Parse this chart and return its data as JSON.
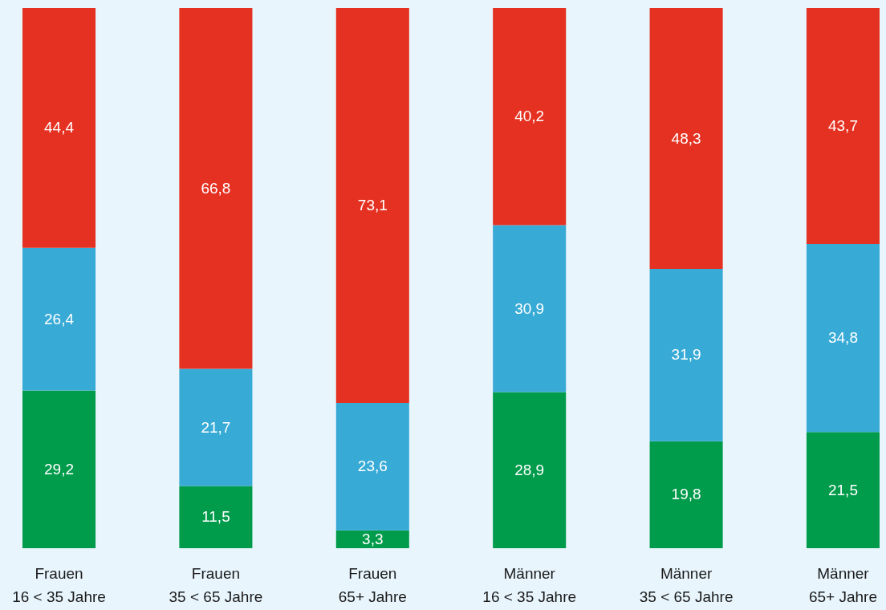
{
  "chart_data": {
    "type": "bar",
    "stacked": true,
    "categories": [
      "Frauen\n16 < 35 Jahre",
      "Frauen\n35 < 65 Jahre",
      "Frauen\n65+ Jahre",
      "Männer\n16 < 35 Jahre",
      "Männer\n35 < 65 Jahre",
      "Männer\n65+ Jahre"
    ],
    "series": [
      {
        "color": "#009b4b",
        "values": [
          29.2,
          11.5,
          3.3,
          28.9,
          19.8,
          21.5
        ],
        "value_labels": [
          "29,2",
          "11,5",
          "3,3",
          "28,9",
          "19,8",
          "21,5"
        ]
      },
      {
        "color": "#38aad6",
        "values": [
          26.4,
          21.7,
          23.6,
          30.9,
          31.9,
          34.8
        ],
        "value_labels": [
          "26,4",
          "21,7",
          "23,6",
          "30,9",
          "31,9",
          "34,8"
        ]
      },
      {
        "color": "#e53121",
        "values": [
          44.4,
          66.8,
          73.1,
          40.2,
          48.3,
          43.7
        ],
        "value_labels": [
          "44,4",
          "66,8",
          "73,1",
          "40,2",
          "48,3",
          "43,7"
        ]
      }
    ]
  }
}
